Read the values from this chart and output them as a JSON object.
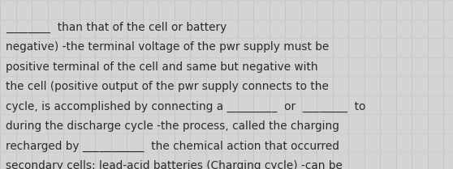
{
  "background_color": "#d4d4d4",
  "grid_color_v": "#bcbcbc",
  "grid_color_h": "#c8c8c8",
  "text_color": "#2a2a2a",
  "font_size": 9.8,
  "lines": [
    "secondary cells: lead-acid batteries (Charging cycle) -can be",
    "recharged by ___________  the chemical action that occurred",
    "during the discharge cycle -the process, called the charging",
    "cycle, is accomplished by connecting a _________  or  ________  to",
    "the cell (positive output of the pwr supply connects to the",
    "positive terminal of the cell and same but negative with",
    "negative) -the terminal voltage of the pwr supply must be",
    "________  than that of the cell or battery"
  ],
  "figsize": [
    5.58,
    2.09
  ],
  "dpi": 100
}
